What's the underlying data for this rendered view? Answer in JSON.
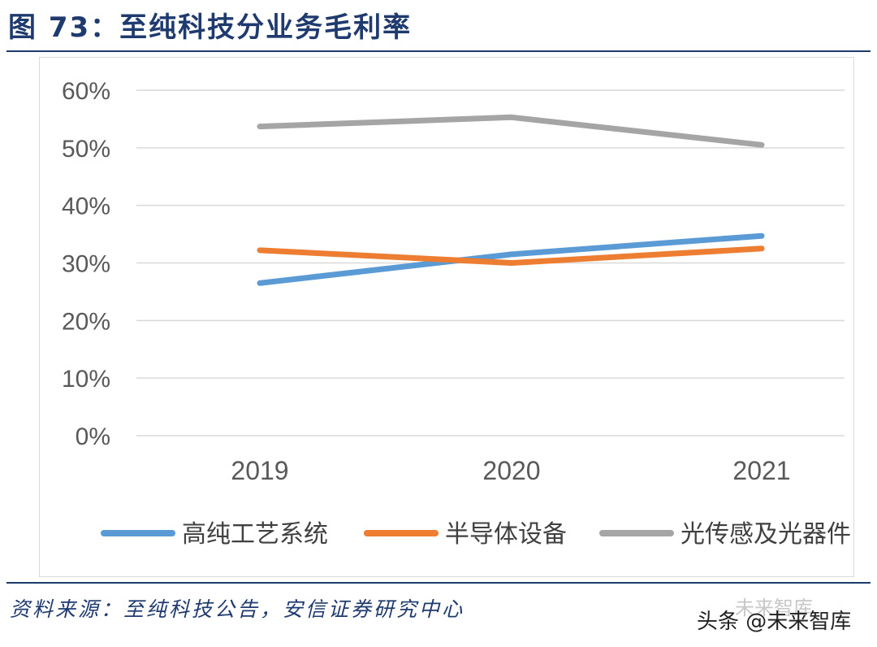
{
  "header": {
    "title": "图 73：至纯科技分业务毛利率"
  },
  "chart_data": {
    "type": "line",
    "categories": [
      "2019",
      "2020",
      "2021"
    ],
    "series": [
      {
        "name": "高纯工艺系统",
        "color": "#5b9bd5",
        "values": [
          26.5,
          31.5,
          34.7
        ]
      },
      {
        "name": "半导体设备",
        "color": "#ed7d31",
        "values": [
          32.2,
          30.0,
          32.5
        ]
      },
      {
        "name": "光传感及光器件",
        "color": "#a5a5a5",
        "values": [
          53.7,
          55.3,
          50.5
        ]
      }
    ],
    "ylim": [
      0,
      60
    ],
    "yticks": [
      "0%",
      "10%",
      "20%",
      "30%",
      "40%",
      "50%",
      "60%"
    ],
    "grid": true,
    "legend": "bottom"
  },
  "footer": {
    "source": "资料来源：至纯科技公告，安信证券研究中心",
    "watermark": "头条 @未来智库",
    "watermark_faint": "未来智库"
  }
}
